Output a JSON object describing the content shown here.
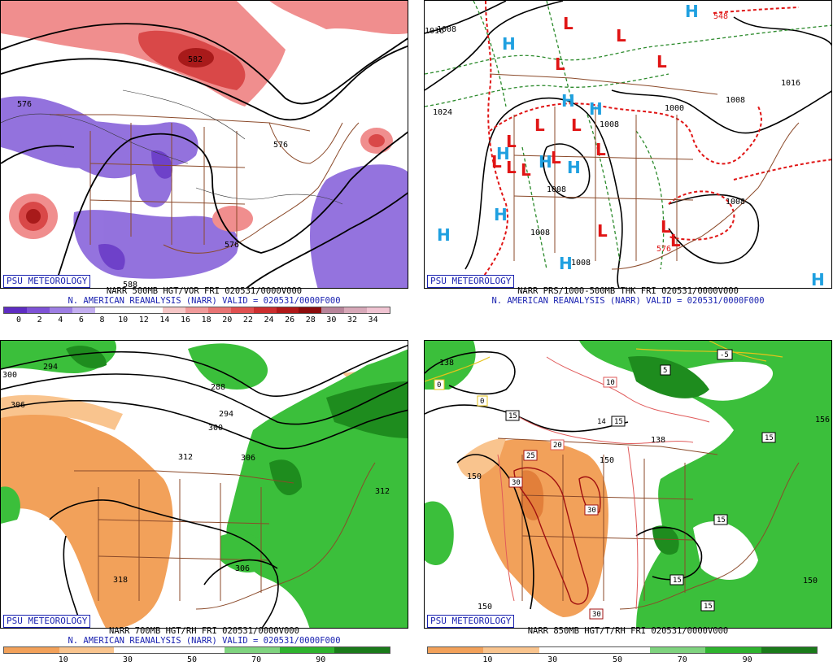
{
  "panels": [
    {
      "psu": "PSU METEOROLOGY",
      "line1": "NARR 500MB HGT/VOR FRI 020531/0000V000",
      "line2": "N. AMERICAN REANALYSIS (NARR) VALID = 020531/0000F000",
      "contour_labels": [
        "576",
        "582",
        "576",
        "576",
        "588"
      ],
      "colorbar": {
        "ticks": [
          "0",
          "2",
          "4",
          "6",
          "8",
          "10",
          "12",
          "14",
          "16",
          "18",
          "20",
          "22",
          "24",
          "26",
          "28",
          "30",
          "32",
          "34"
        ],
        "colors": [
          "#5e2cc2",
          "#7e52d6",
          "#9d7ee3",
          "#c3aef0",
          "#ffffff",
          "#ffffff",
          "#ffffff",
          "#f6c7c7",
          "#f09a9a",
          "#e87474",
          "#e05050",
          "#cc2e2e",
          "#b01818",
          "#8c0c0c",
          "#b8849a",
          "#d7a8b8",
          "#f0c4d2"
        ]
      }
    },
    {
      "psu": "PSU METEOROLOGY",
      "line1": "NARR PRS/1000-500MB THK FRI 020531/0000V000",
      "line2": "N. AMERICAN REANALYSIS (NARR) VALID = 020531/0000F000",
      "contour_labels": [
        "1008",
        "1016",
        "1024",
        "1008",
        "1008",
        "1008",
        "1008",
        "1000",
        "1008",
        "1008",
        "1016",
        "548",
        "576"
      ],
      "highs": "H",
      "lows": "L"
    },
    {
      "psu": "PSU METEOROLOGY",
      "line1": "NARR 700MB HGT/RH FRI 020531/0000V000",
      "line2": "N. AMERICAN REANALYSIS (NARR) VALID = 020531/0000F000",
      "contour_labels": [
        "300",
        "294",
        "306",
        "288",
        "294",
        "300",
        "312",
        "306",
        "312",
        "306",
        "318"
      ],
      "colorbar": {
        "ticks": [
          "10",
          "30",
          "50",
          "70",
          "90"
        ],
        "colors": [
          "#f2a15a",
          "#f9c48e",
          "#ffffff",
          "#ffffff",
          "#7fd37f",
          "#2eb32e",
          "#1a7a1a"
        ]
      }
    },
    {
      "psu": "PSU METEOROLOGY",
      "line1": "NARR 850MB HGT/T/RH FRI 020531/0000V000",
      "line2": "",
      "contour_labels": [
        "138",
        "150",
        "150",
        "150",
        "138",
        "150",
        "156"
      ],
      "temp_labels": [
        "0",
        "0",
        "-5",
        "5",
        "10",
        "15",
        "14",
        "15",
        "15",
        "20",
        "25",
        "30",
        "30",
        "30",
        "15",
        "15",
        "15"
      ],
      "colorbar": {
        "ticks": [
          "10",
          "30",
          "50",
          "70",
          "90"
        ],
        "colors": [
          "#f2a15a",
          "#f9c48e",
          "#ffffff",
          "#ffffff",
          "#7fd37f",
          "#2eb32e",
          "#1a7a1a"
        ]
      }
    }
  ]
}
